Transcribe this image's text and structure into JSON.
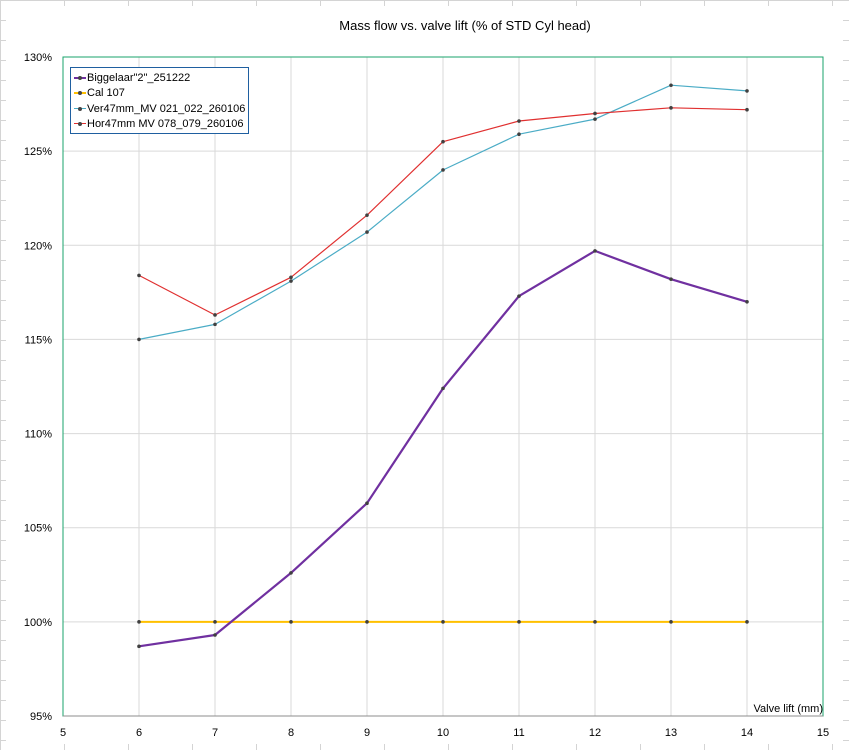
{
  "chart_data": {
    "type": "line",
    "title": "Mass flow vs. valve lift (% of STD Cyl head)",
    "xlabel": "Valve lift (mm)",
    "ylabel": "",
    "xlim": [
      5,
      15
    ],
    "ylim": [
      95,
      130
    ],
    "x_ticks": [
      "5",
      "6",
      "7",
      "8",
      "9",
      "10",
      "11",
      "12",
      "13",
      "14",
      "15"
    ],
    "y_ticks": [
      "95%",
      "100%",
      "105%",
      "110%",
      "115%",
      "120%",
      "125%",
      "130%"
    ],
    "grid": true,
    "legend_position": "top-left",
    "x": [
      6,
      7,
      8,
      9,
      10,
      11,
      12,
      13,
      14
    ],
    "series": [
      {
        "name": "Biggelaar\"2\"_251222",
        "color": "#7030a0",
        "width": 2.2,
        "values": [
          98.7,
          99.3,
          102.6,
          106.3,
          112.4,
          117.3,
          119.7,
          118.2,
          117.0
        ]
      },
      {
        "name": "Cal 107",
        "color": "#ffc000",
        "width": 2,
        "values": [
          100,
          100,
          100,
          100,
          100,
          100,
          100,
          100,
          100
        ]
      },
      {
        "name": "Ver47mm_MV 021_022_260106",
        "color": "#4bacc6",
        "width": 1.2,
        "values": [
          115.0,
          115.8,
          118.1,
          120.7,
          124.0,
          125.9,
          126.7,
          128.5,
          128.2
        ]
      },
      {
        "name": "Hor47mm MV 078_079_260106",
        "color": "#e03030",
        "width": 1.2,
        "values": [
          118.4,
          116.3,
          118.3,
          121.6,
          125.5,
          126.6,
          127.0,
          127.3,
          127.2
        ]
      }
    ]
  }
}
